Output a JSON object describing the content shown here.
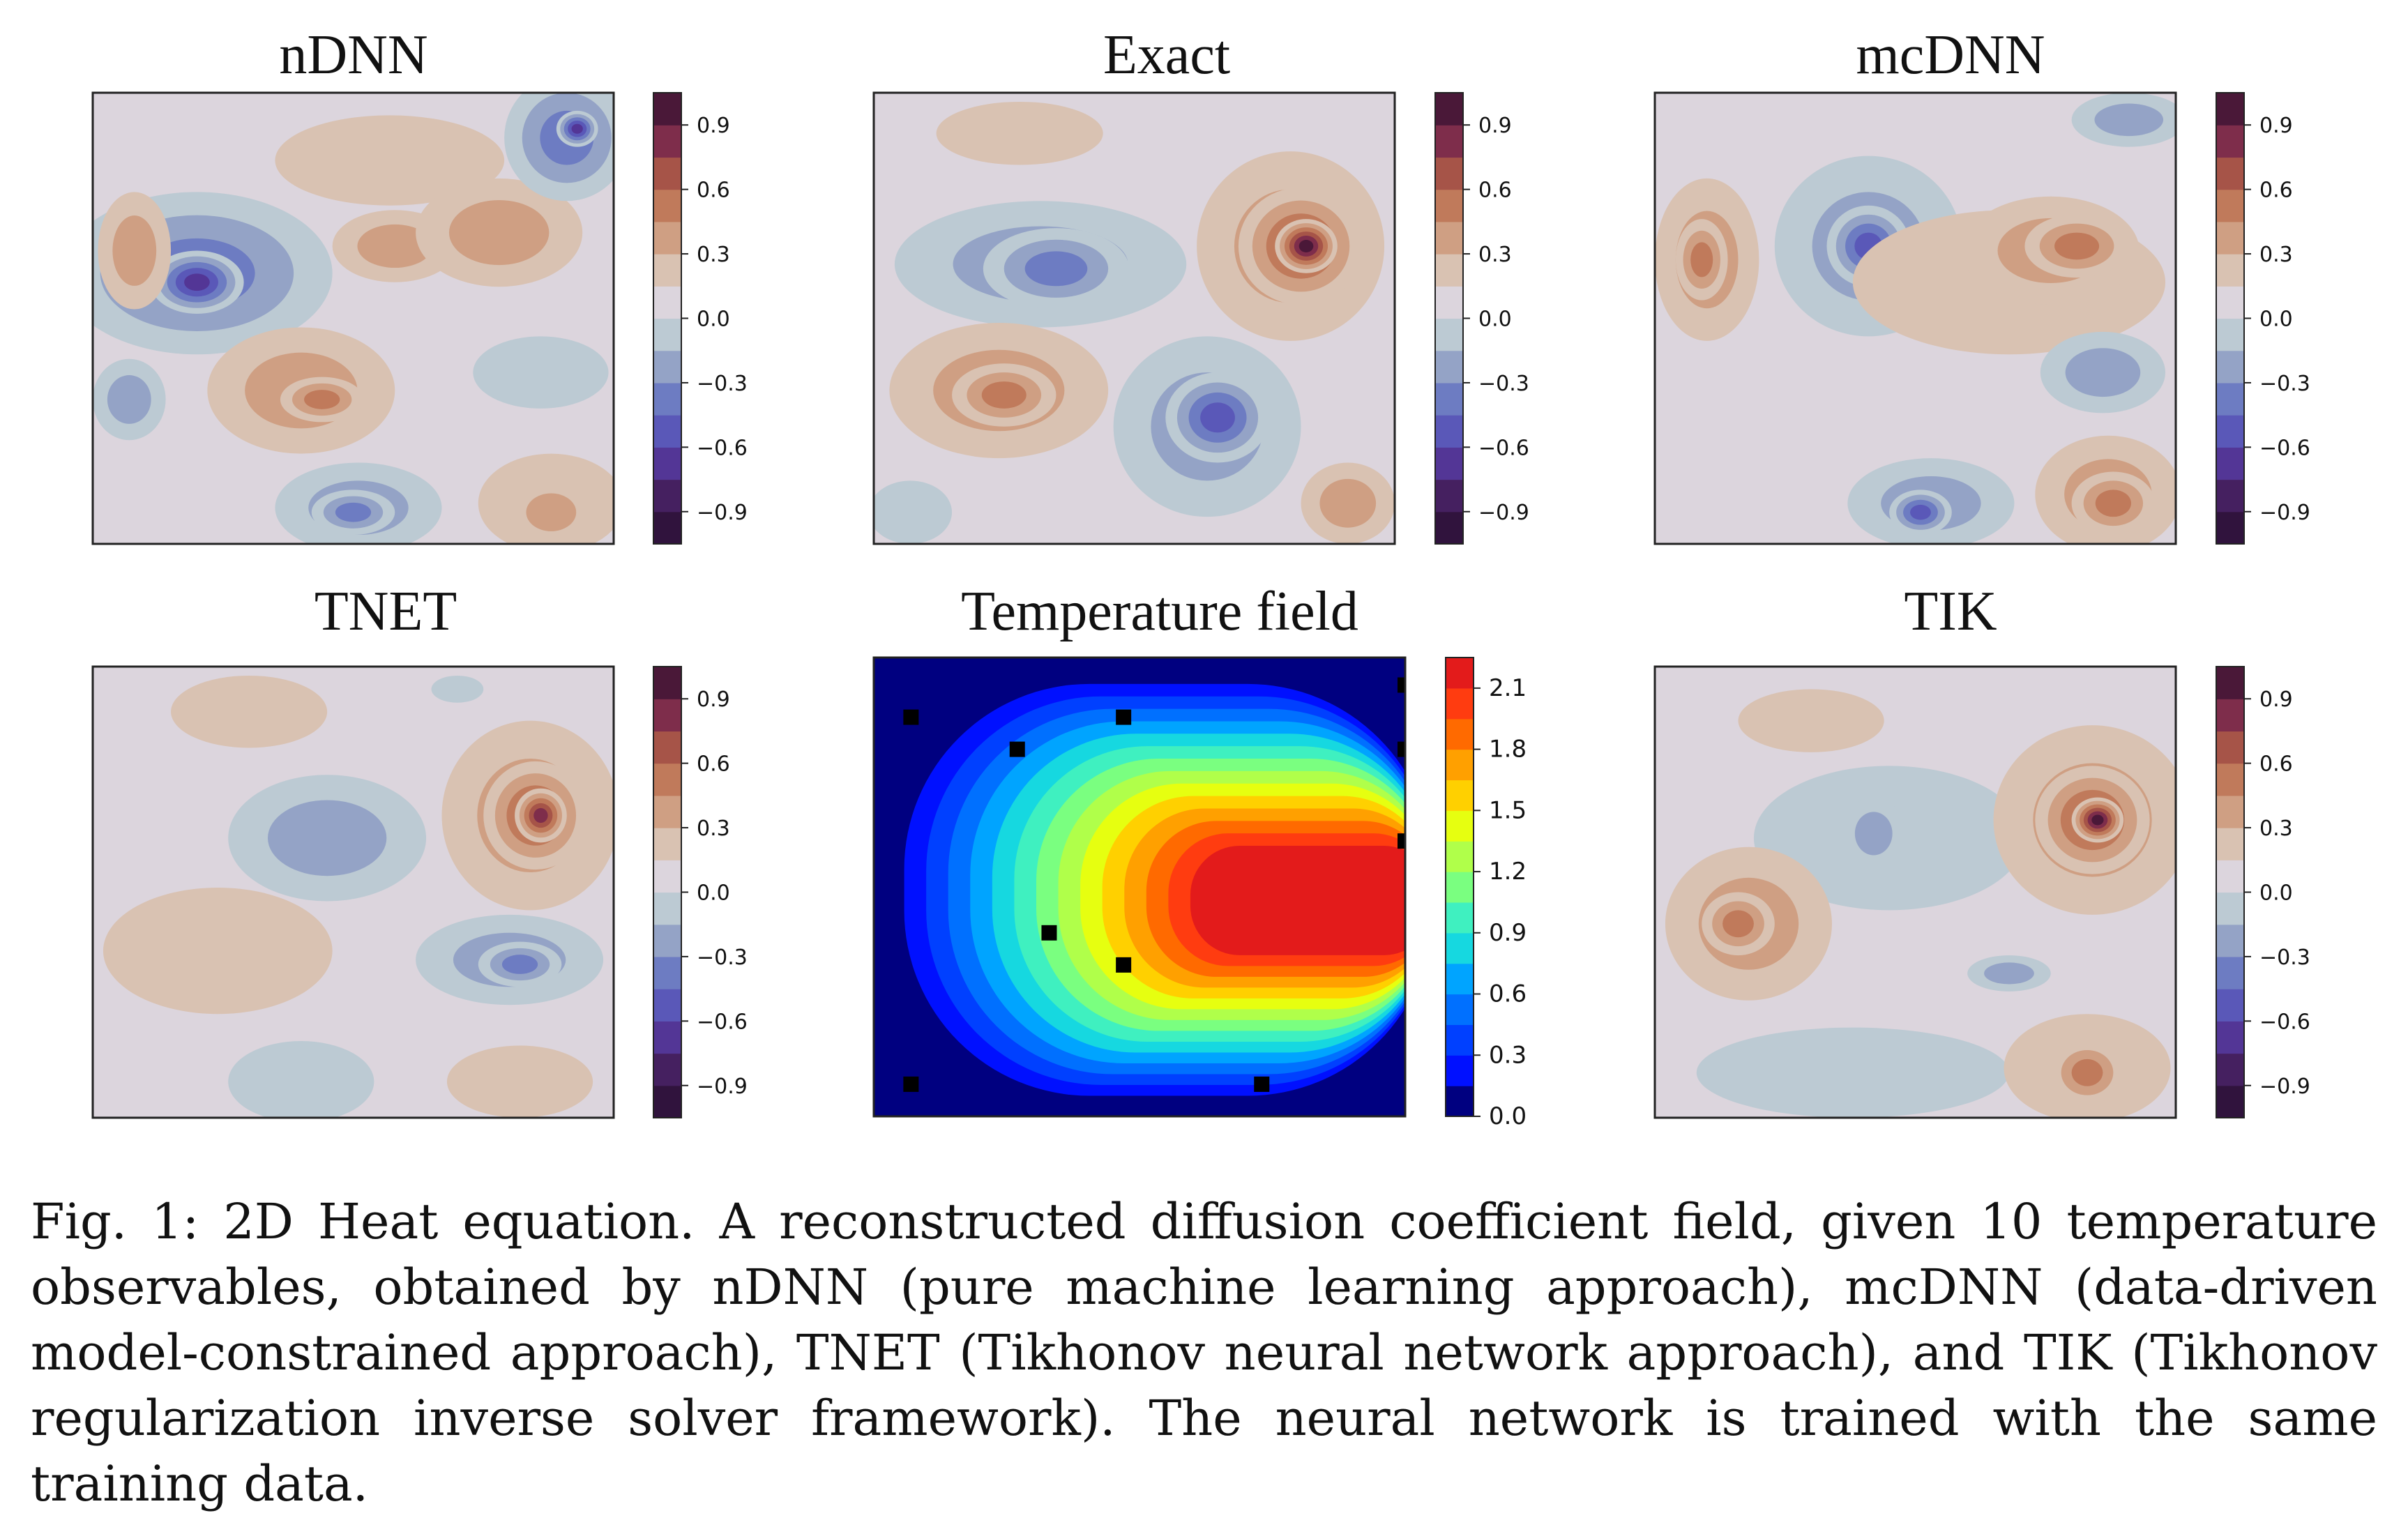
{
  "figure": {
    "panels": [
      {
        "title": "nDNN",
        "colormap": "twilight_shifted",
        "ticks": [
          "0.9",
          "0.6",
          "0.3",
          "0.0",
          "−0.3",
          "−0.6",
          "−0.9"
        ]
      },
      {
        "title": "Exact",
        "colormap": "twilight_shifted",
        "ticks": [
          "0.9",
          "0.6",
          "0.3",
          "0.0",
          "−0.3",
          "−0.6",
          "−0.9"
        ]
      },
      {
        "title": "mcDNN",
        "colormap": "twilight_shifted",
        "ticks": [
          "0.9",
          "0.6",
          "0.3",
          "0.0",
          "−0.3",
          "−0.6",
          "−0.9"
        ]
      },
      {
        "title": "TNET",
        "colormap": "twilight_shifted",
        "ticks": [
          "0.9",
          "0.6",
          "0.3",
          "0.0",
          "−0.3",
          "−0.6",
          "−0.9"
        ]
      },
      {
        "title": "Temperature field",
        "colormap": "jet",
        "ticks": [
          "2.1",
          "1.8",
          "1.5",
          "1.2",
          "0.9",
          "0.6",
          "0.3",
          "0.0"
        ]
      },
      {
        "title": "TIK",
        "colormap": "twilight_shifted",
        "ticks": [
          "0.9",
          "0.6",
          "0.3",
          "0.0",
          "−0.3",
          "−0.6",
          "−0.9"
        ]
      }
    ]
  },
  "chart_data": [
    {
      "type": "heatmap",
      "title": "nDNN",
      "zlim": [
        -1.05,
        1.05
      ],
      "colorbar_ticks": [
        0.9,
        0.6,
        0.3,
        0.0,
        -0.3,
        -0.6,
        -0.9
      ]
    },
    {
      "type": "heatmap",
      "title": "Exact",
      "zlim": [
        -1.05,
        1.05
      ],
      "colorbar_ticks": [
        0.9,
        0.6,
        0.3,
        0.0,
        -0.3,
        -0.6,
        -0.9
      ]
    },
    {
      "type": "heatmap",
      "title": "mcDNN",
      "zlim": [
        -1.05,
        1.05
      ],
      "colorbar_ticks": [
        0.9,
        0.6,
        0.3,
        0.0,
        -0.3,
        -0.6,
        -0.9
      ]
    },
    {
      "type": "heatmap",
      "title": "TNET",
      "zlim": [
        -1.05,
        1.05
      ],
      "colorbar_ticks": [
        0.9,
        0.6,
        0.3,
        0.0,
        -0.3,
        -0.6,
        -0.9
      ]
    },
    {
      "type": "heatmap",
      "title": "Temperature field",
      "zlim": [
        0.0,
        2.25
      ],
      "colorbar_ticks": [
        2.1,
        1.8,
        1.5,
        1.2,
        0.9,
        0.6,
        0.3,
        0.0
      ],
      "observation_points": [
        {
          "x": 0.07,
          "y": 0.87
        },
        {
          "x": 0.47,
          "y": 0.87
        },
        {
          "x": 0.27,
          "y": 0.8
        },
        {
          "x": 1.0,
          "y": 0.94
        },
        {
          "x": 1.0,
          "y": 0.8
        },
        {
          "x": 1.0,
          "y": 0.6
        },
        {
          "x": 0.33,
          "y": 0.4
        },
        {
          "x": 0.47,
          "y": 0.33
        },
        {
          "x": 0.07,
          "y": 0.07
        },
        {
          "x": 0.73,
          "y": 0.07
        }
      ]
    },
    {
      "type": "heatmap",
      "title": "TIK",
      "zlim": [
        -1.05,
        1.05
      ],
      "colorbar_ticks": [
        0.9,
        0.6,
        0.3,
        0.0,
        -0.3,
        -0.6,
        -0.9
      ]
    }
  ],
  "caption": {
    "text": "Fig. 1: 2D Heat equation. A reconstructed diffusion coefficient field, given 10 temperature observables, obtained by nDNN (pure machine learning approach), mcDNN (data-driven model-constrained approach), TNET (Tikhonov neural network approach), and TIK (Tikhonov regularization inverse solver framework). The neural network is trained with the same training data."
  }
}
